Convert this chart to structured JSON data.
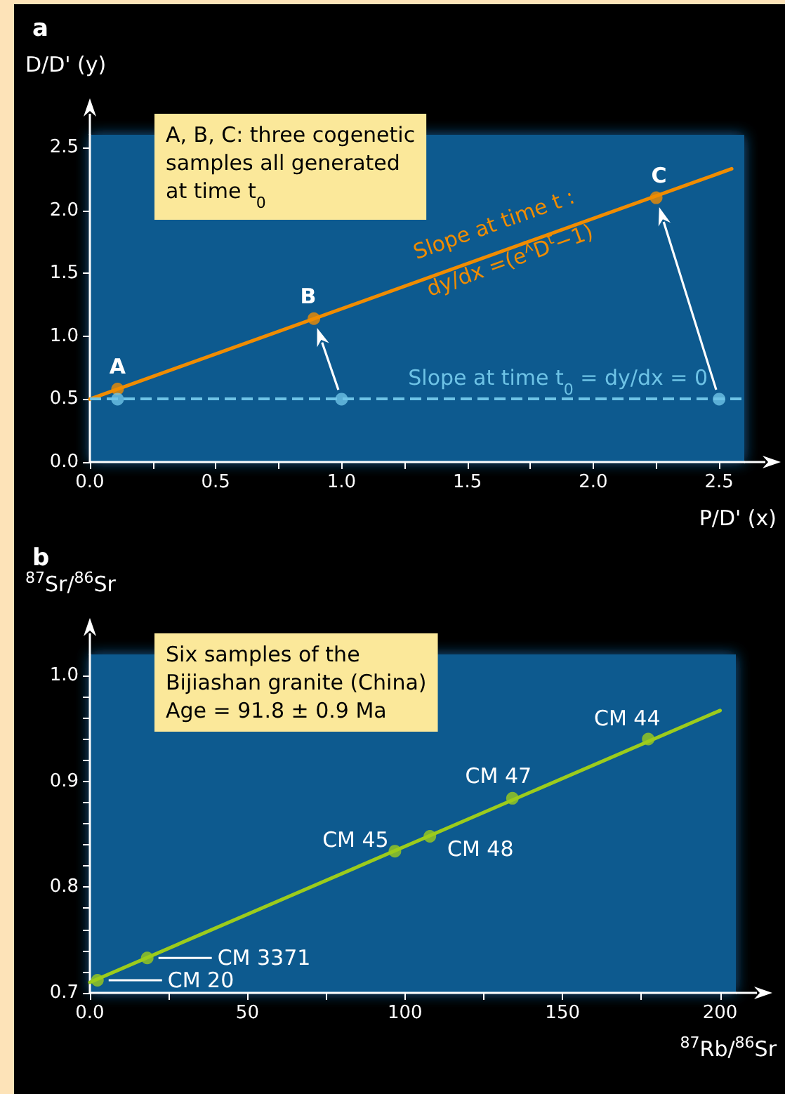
{
  "chart_data": [
    {
      "type": "scatter",
      "title": "a",
      "xlabel": "P/D' (x)",
      "ylabel": "D/D' (y)",
      "xlim": [
        0,
        2.6
      ],
      "ylim": [
        0,
        2.6
      ],
      "xticks": [
        {
          "value": 0,
          "label": "0.0"
        },
        {
          "value": 0.25,
          "label": null
        },
        {
          "value": 0.5,
          "label": "0.5"
        },
        {
          "value": 0.75,
          "label": null
        },
        {
          "value": 1,
          "label": "1.0"
        },
        {
          "value": 1.25,
          "label": null
        },
        {
          "value": 1.5,
          "label": "1.5"
        },
        {
          "value": 1.75,
          "label": null
        },
        {
          "value": 2,
          "label": "2.0"
        },
        {
          "value": 2.25,
          "label": null
        },
        {
          "value": 2.5,
          "label": "2.5"
        }
      ],
      "yticks": [
        {
          "value": 0,
          "label": "0.0"
        },
        {
          "value": 0.5,
          "label": "0.5"
        },
        {
          "value": 1,
          "label": "1.0"
        },
        {
          "value": 1.5,
          "label": "1.5"
        },
        {
          "value": 2,
          "label": "2.0"
        },
        {
          "value": 2.5,
          "label": "2.5"
        }
      ],
      "grid": false,
      "series": [
        {
          "type": "line",
          "color": "#f08c00",
          "x": [
            0,
            2.55
          ],
          "values": [
            0.5,
            2.33
          ],
          "marker": "none",
          "line_style": "solid"
        },
        {
          "color": "#f08c00",
          "x": [
            0.11,
            0.89,
            2.25
          ],
          "values": [
            0.58,
            1.14,
            2.1
          ],
          "marker": "circle"
        },
        {
          "color": "#6ec3e6",
          "x": [
            0.11,
            1.0,
            2.5
          ],
          "values": [
            0.5,
            0.5,
            0.5
          ],
          "marker": "circle"
        }
      ],
      "ref_lines": [
        {
          "axis": "y",
          "value": 0.5,
          "label": "Slope at time t$_{0}$ =  dy/dx = 0",
          "color": "#6ec3e6",
          "line_style": "dashed"
        }
      ],
      "annotations": [
        {
          "text": "A",
          "x": 0.11,
          "y": 0.58
        },
        {
          "text": "B",
          "x": 0.89,
          "y": 1.14
        },
        {
          "text": "C",
          "x": 2.25,
          "y": 2.1
        },
        "A, B, C: three cogenetic\nsamples all generated\nat time t$_{0}$",
        {
          "text": "Slope at time t :",
          "x": 1.75,
          "y": 1.8
        },
        {
          "text": "dy/dx =(e$^{λ}$D$^{t}$−1)",
          "x": 1.75,
          "y": 1.8
        }
      ]
    },
    {
      "type": "scatter",
      "title": "b",
      "xlabel": "$^{87}$Rb/$^{86}$Sr",
      "ylabel": "$^{87}$Sr/$^{86}$Sr",
      "xlim": [
        0,
        205
      ],
      "ylim": [
        0.7,
        1.02
      ],
      "xticks": [
        {
          "value": 0,
          "label": "0.0"
        },
        {
          "value": 25,
          "label": null
        },
        50,
        {
          "value": 75,
          "label": null
        },
        100,
        {
          "value": 125,
          "label": null
        },
        150,
        {
          "value": 175,
          "label": null
        },
        200
      ],
      "yticks": [
        0.7,
        {
          "value": 0.72,
          "label": null
        },
        {
          "value": 0.74,
          "label": null
        },
        {
          "value": 0.76,
          "label": null
        },
        {
          "value": 0.78,
          "label": null
        },
        0.8,
        {
          "value": 0.82,
          "label": null
        },
        {
          "value": 0.84,
          "label": null
        },
        {
          "value": 0.86,
          "label": null
        },
        {
          "value": 0.88,
          "label": null
        },
        0.9,
        {
          "value": 0.92,
          "label": null
        },
        {
          "value": 0.94,
          "label": null
        },
        {
          "value": 0.96,
          "label": null
        },
        {
          "value": 0.98,
          "label": null
        },
        {
          "value": 1,
          "label": "1.0"
        }
      ],
      "grid": false,
      "series": [
        {
          "type": "line",
          "color": "#9ccc1c",
          "x": [
            0,
            200
          ],
          "values": [
            0.71,
            0.967
          ],
          "marker": "none",
          "line_style": "solid"
        },
        {
          "color": "#9ccc1c",
          "x": [
            2.4,
            18.2,
            96.8,
            107.9,
            134.1,
            177.2
          ],
          "values": [
            0.712,
            0.733,
            0.834,
            0.848,
            0.884,
            0.94
          ],
          "marker": "circle"
        }
      ],
      "annotations": [
        {
          "text": "CM 20",
          "x": 2.4,
          "y": 0.712
        },
        {
          "text": "CM 3371",
          "x": 18.2,
          "y": 0.733
        },
        {
          "text": "CM 45",
          "x": 96.8,
          "y": 0.834
        },
        {
          "text": "CM 48",
          "x": 107.9,
          "y": 0.848
        },
        {
          "text": "CM 47",
          "x": 134.1,
          "y": 0.884
        },
        {
          "text": "CM 44",
          "x": 177.2,
          "y": 0.94
        },
        "Six samples of the\nBijiashan granite (China)\nAge = 91.8 ± 0.9 Ma"
      ]
    }
  ]
}
